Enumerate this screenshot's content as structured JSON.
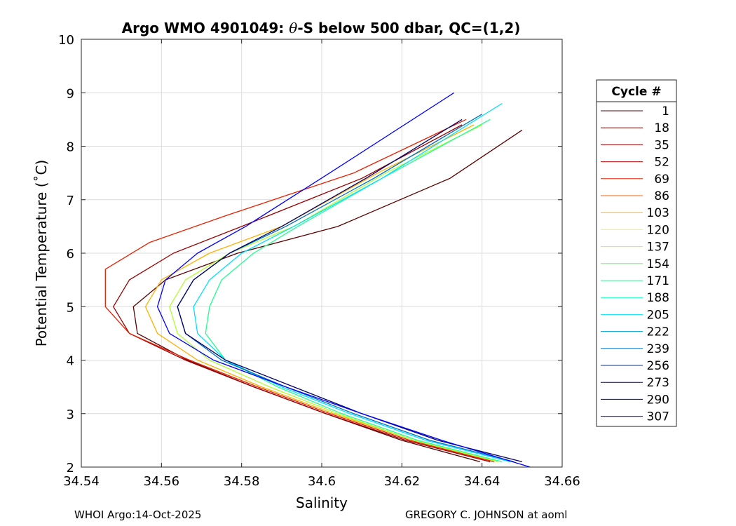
{
  "chart_data": {
    "type": "line",
    "title_prefix": "Argo WMO 4901049: ",
    "title_theta": "θ",
    "title_suffix": "-S below 500 dbar,  QC=(1,2)",
    "xlabel": "Salinity",
    "ylabel": "Potential Temperature (˚C)",
    "xlim": [
      34.54,
      34.66
    ],
    "ylim": [
      2,
      10
    ],
    "x_ticks": [
      34.54,
      34.56,
      34.58,
      34.6,
      34.62,
      34.64,
      34.66
    ],
    "x_tick_labels": [
      "34.54",
      "34.56",
      "34.58",
      "34.6",
      "34.62",
      "34.64",
      "34.66"
    ],
    "y_ticks": [
      2,
      3,
      4,
      5,
      6,
      7,
      8,
      9,
      10
    ],
    "y_tick_labels": [
      "2",
      "3",
      "4",
      "5",
      "6",
      "7",
      "8",
      "9",
      "10"
    ],
    "grid": true,
    "legend_title": "Cycle #",
    "legend_position": "outside-right",
    "legend": [
      {
        "label": "1",
        "color": "#5a0000"
      },
      {
        "label": "18",
        "color": "#780000"
      },
      {
        "label": "35",
        "color": "#9a0000"
      },
      {
        "label": "52",
        "color": "#c00000"
      },
      {
        "label": "69",
        "color": "#e82000"
      },
      {
        "label": "86",
        "color": "#ff6000"
      },
      {
        "label": "103",
        "color": "#ffb000"
      },
      {
        "label": "120",
        "color": "#ffff00"
      },
      {
        "label": "137",
        "color": "#b0ff30"
      },
      {
        "label": "154",
        "color": "#60ff60"
      },
      {
        "label": "171",
        "color": "#20ff90"
      },
      {
        "label": "188",
        "color": "#00ffc0"
      },
      {
        "label": "205",
        "color": "#00e0ff"
      },
      {
        "label": "222",
        "color": "#00a0d0"
      },
      {
        "label": "239",
        "color": "#0070c0"
      },
      {
        "label": "256",
        "color": "#003090"
      },
      {
        "label": "273",
        "color": "#000068"
      },
      {
        "label": "290",
        "color": "#0000a0"
      },
      {
        "label": "307",
        "color": "#0000ff"
      }
    ],
    "series": [
      {
        "name": "1",
        "color": "#5a0000",
        "s": [
          34.6395,
          34.62,
          34.601,
          34.583,
          34.5665,
          34.554,
          34.553,
          34.561,
          34.579,
          34.604,
          34.632,
          34.65
        ],
        "theta": [
          2.1,
          2.5,
          3.0,
          3.5,
          4.0,
          4.5,
          5.0,
          5.5,
          6.0,
          6.5,
          7.4,
          8.3
        ]
      },
      {
        "name": "35",
        "color": "#9a0000",
        "s": [
          34.642,
          34.621,
          34.601,
          34.583,
          34.566,
          34.552,
          34.548,
          34.552,
          34.563,
          34.58,
          34.61,
          34.635
        ],
        "theta": [
          2.1,
          2.5,
          3.0,
          3.5,
          4.0,
          4.5,
          5.0,
          5.5,
          6.0,
          6.5,
          7.4,
          8.4
        ]
      },
      {
        "name": "69",
        "color": "#e82000",
        "s": [
          34.643,
          34.622,
          34.602,
          34.584,
          34.567,
          34.552,
          34.546,
          34.546,
          34.557,
          34.576,
          34.608,
          34.636
        ],
        "theta": [
          2.1,
          2.5,
          3.0,
          3.5,
          4.0,
          4.5,
          5.0,
          5.7,
          6.2,
          6.7,
          7.5,
          8.5
        ]
      },
      {
        "name": "103",
        "color": "#ffb000",
        "s": [
          34.644,
          34.623,
          34.603,
          34.585,
          34.569,
          34.559,
          34.556,
          34.56,
          34.572,
          34.59,
          34.614,
          34.638
        ],
        "theta": [
          2.1,
          2.5,
          3.0,
          3.5,
          4.0,
          4.5,
          5.0,
          5.5,
          6.0,
          6.5,
          7.5,
          8.4
        ]
      },
      {
        "name": "137",
        "color": "#b0ff30",
        "s": [
          34.644,
          34.623,
          34.604,
          34.587,
          34.572,
          34.564,
          34.562,
          34.566,
          34.577,
          34.593,
          34.616,
          34.64
        ],
        "theta": [
          2.1,
          2.5,
          3.0,
          3.5,
          4.0,
          4.5,
          5.0,
          5.5,
          6.0,
          6.5,
          7.5,
          8.4
        ]
      },
      {
        "name": "171",
        "color": "#20ff90",
        "s": [
          34.645,
          34.624,
          34.605,
          34.589,
          34.576,
          34.571,
          34.572,
          34.575,
          34.583,
          34.594,
          34.615,
          34.642
        ],
        "theta": [
          2.1,
          2.5,
          3.0,
          3.5,
          4.0,
          4.5,
          5.0,
          5.5,
          6.0,
          6.5,
          7.4,
          8.5
        ]
      },
      {
        "name": "205",
        "color": "#00e0ff",
        "s": [
          34.647,
          34.626,
          34.607,
          34.59,
          34.576,
          34.569,
          34.568,
          34.572,
          34.58,
          34.593,
          34.615,
          34.645
        ],
        "theta": [
          2.1,
          2.5,
          3.0,
          3.5,
          4.0,
          4.5,
          5.0,
          5.5,
          6.0,
          6.5,
          7.4,
          8.8
        ]
      },
      {
        "name": "239",
        "color": "#0070c0",
        "s": [
          34.648,
          34.627,
          34.608,
          34.591,
          34.575,
          34.566,
          34.564,
          34.568,
          34.577,
          34.591,
          34.613,
          34.64
        ],
        "theta": [
          2.1,
          2.5,
          3.0,
          3.5,
          4.0,
          4.5,
          5.0,
          5.5,
          6.0,
          6.5,
          7.4,
          8.6
        ]
      },
      {
        "name": "273",
        "color": "#000068",
        "s": [
          34.65,
          34.629,
          34.61,
          34.593,
          34.576,
          34.566,
          34.564,
          34.568,
          34.577,
          34.59,
          34.611,
          34.635
        ],
        "theta": [
          2.1,
          2.5,
          3.0,
          3.5,
          4.0,
          4.5,
          5.0,
          5.5,
          6.0,
          6.5,
          7.4,
          8.5
        ]
      },
      {
        "name": "307",
        "color": "#0000ff",
        "s": [
          34.652,
          34.63,
          34.61,
          34.591,
          34.573,
          34.562,
          34.559,
          34.561,
          34.569,
          34.581,
          34.602,
          34.633
        ],
        "theta": [
          2.0,
          2.5,
          3.0,
          3.5,
          4.0,
          4.5,
          5.0,
          5.5,
          6.0,
          6.5,
          7.5,
          9.0
        ]
      }
    ]
  },
  "footer": {
    "left": "WHOI Argo:14-Oct-2025",
    "right": "GREGORY C. JOHNSON at aoml"
  }
}
